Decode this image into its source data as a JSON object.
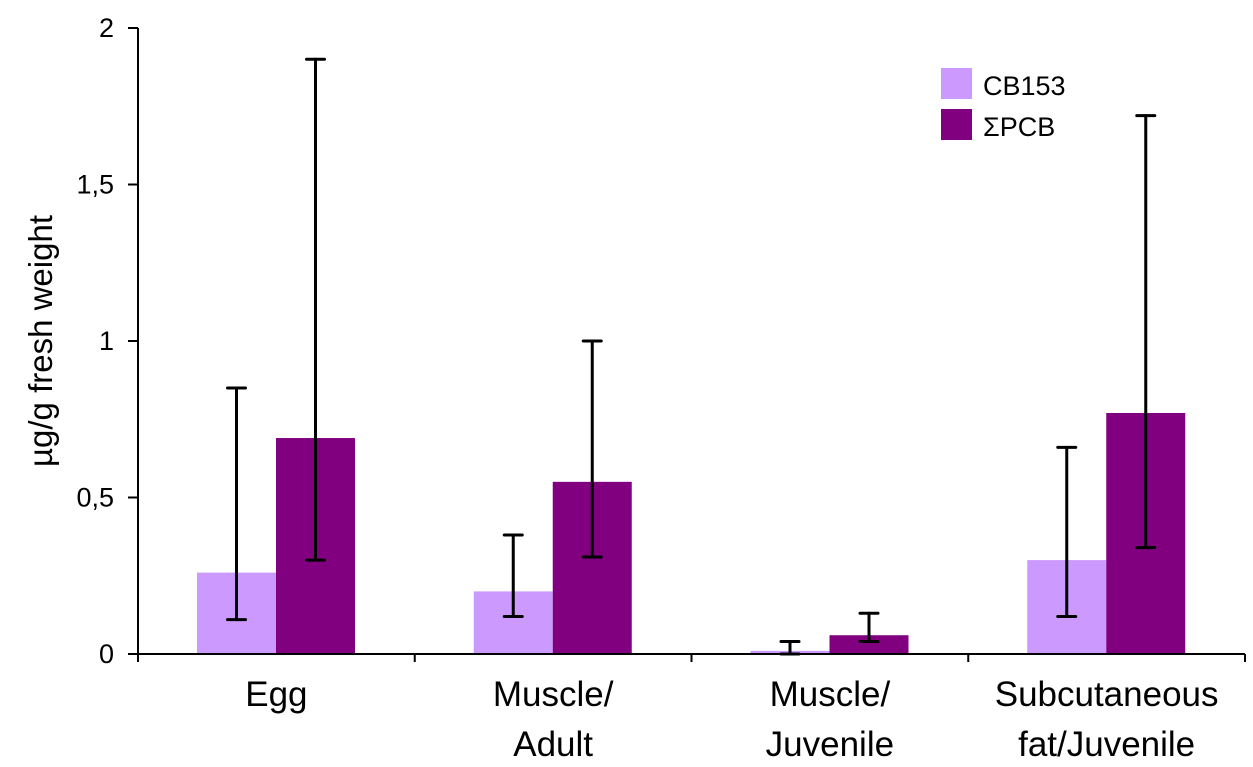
{
  "chart_data": {
    "type": "bar",
    "categories": [
      [
        "Egg"
      ],
      [
        "Muscle/",
        "Adult"
      ],
      [
        "Muscle/",
        "Juvenile"
      ],
      [
        "Subcutaneous",
        "fat/Juvenile"
      ]
    ],
    "series": [
      {
        "name": "CB153",
        "color": "#cc99ff",
        "values": [
          0.26,
          0.2,
          0.01,
          0.3
        ],
        "error_low": [
          0.11,
          0.12,
          0.0,
          0.12
        ],
        "error_high": [
          0.85,
          0.38,
          0.04,
          0.66
        ]
      },
      {
        "name": "ΣPCB",
        "color": "#800080",
        "values": [
          0.69,
          0.55,
          0.06,
          0.77
        ],
        "error_low": [
          0.3,
          0.31,
          0.04,
          0.34
        ],
        "error_high": [
          1.9,
          1.0,
          0.13,
          1.72
        ]
      }
    ],
    "ylabel": "µg/g fresh weight",
    "xlabel": "",
    "ylim": [
      0,
      2
    ],
    "yticks": [
      0,
      0.5,
      1,
      1.5,
      2
    ],
    "ytick_labels": [
      "0",
      "0,5",
      "1",
      "1,5",
      "2"
    ],
    "grid": false,
    "legend_position": "top-right"
  }
}
